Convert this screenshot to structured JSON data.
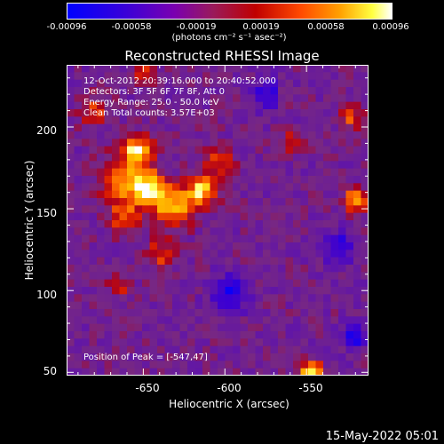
{
  "colorbar": {
    "ticks": [
      "-0.00096",
      "-0.00058",
      "-0.00019",
      "0.00019",
      "0.00058",
      "0.00096"
    ],
    "unit_label": "(photons cm⁻² s⁻¹ asec⁻²)"
  },
  "chart_data": {
    "type": "heatmap",
    "title": "Reconstructed RHESSI Image",
    "xlabel": "Heliocentric X (arcsec)",
    "ylabel": "Heliocentric Y (arcsec)",
    "xlim": [
      -697,
      -512
    ],
    "ylim": [
      48,
      238
    ],
    "xticks": [
      -650,
      -600,
      -550
    ],
    "yticks": [
      50,
      100,
      150,
      200
    ],
    "xtick_labels": [
      "-650",
      "-600",
      "-550"
    ],
    "ytick_labels": [
      "50",
      "100",
      "150",
      "200"
    ],
    "color_range": [
      -0.00096,
      0.00096
    ],
    "colormap": [
      "#0000ff",
      "#7a00b0",
      "#c00000",
      "#ff4a00",
      "#ffa000",
      "#ffff40",
      "#ffffff"
    ],
    "annotations": {
      "time_range": "12-Oct-2012 20:39:16.000 to 20:40:52.000",
      "detectors": "Detectors: 3F 5F 6F 7F 8F, Att 0",
      "energy_range": "Energy Range: 25.0 - 50.0 keV",
      "method": "Clean     Total counts: 3.57E+03",
      "peak": "Position of Peak = [-547,47]"
    },
    "peak_position": [
      -547,
      47
    ]
  },
  "footer": {
    "date": "15-May-2022 05:01"
  }
}
